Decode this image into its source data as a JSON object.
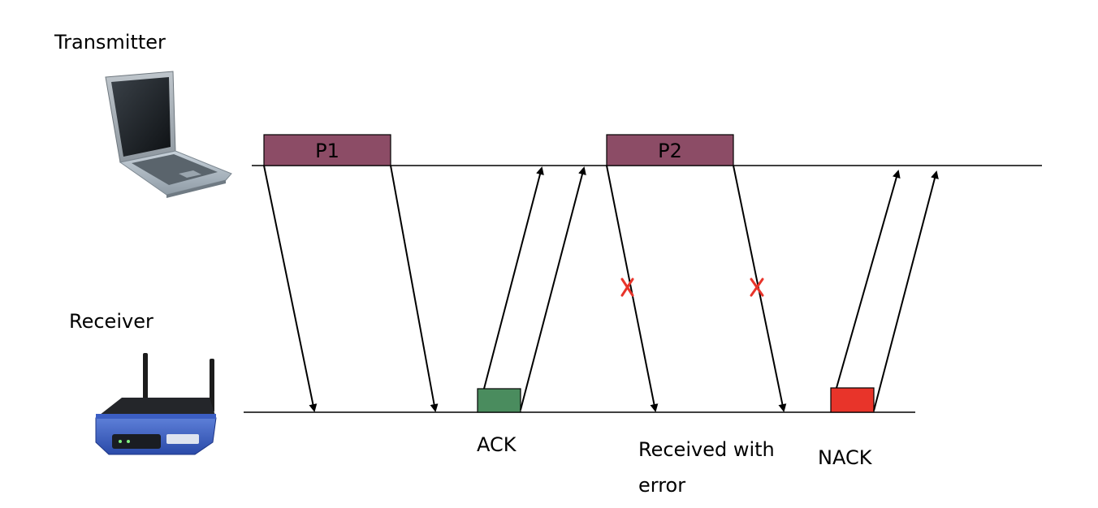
{
  "labels": {
    "transmitter": "Transmitter",
    "receiver": "Receiver",
    "ack": "ACK",
    "received_error_line1": "Received with",
    "received_error_line2": "error",
    "nack": "NACK"
  },
  "packets": [
    "P1",
    "P2"
  ],
  "colors": {
    "packet": "#8c4c66",
    "ack": "#4a8c5e",
    "nack": "#e8342a",
    "error_mark": "#e8342a",
    "line": "#000000"
  },
  "icons": {
    "transmitter": "laptop-icon",
    "receiver": "wireless-router-icon"
  }
}
